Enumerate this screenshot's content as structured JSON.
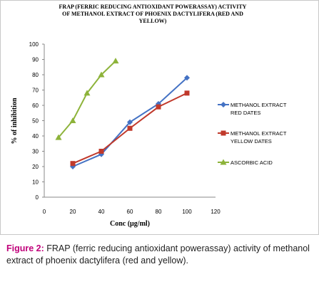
{
  "chart_data": {
    "type": "line",
    "title_lines": [
      "FRAP (FERRIC REDUCING ANTIOXIDANT POWERASSAY) ACTIVITY",
      "OF METHANOL EXTRACT OF PHOENIX DACTYLIFERA (RED AND",
      "YELLOW)"
    ],
    "xlabel": "Conc (µg/ml)",
    "ylabel": "% of inhibition",
    "xlim": [
      0,
      120
    ],
    "ylim": [
      0,
      100
    ],
    "xticks": [
      "0",
      "20",
      "40",
      "60",
      "80",
      "100",
      "120"
    ],
    "yticks": [
      "0",
      "10",
      "20",
      "30",
      "40",
      "50",
      "60",
      "70",
      "80",
      "90",
      "100"
    ],
    "legend_position": "right",
    "series": [
      {
        "name_lines": [
          "METHANOL EXTRACT",
          "RED DATES"
        ],
        "color": "#4472c4",
        "marker": "diamond",
        "x": [
          20,
          40,
          60,
          80,
          100
        ],
        "y": [
          20,
          28,
          49,
          61,
          78
        ]
      },
      {
        "name_lines": [
          "METHANOL EXTRACT",
          "YELLOW DATES"
        ],
        "color": "#c0392b",
        "marker": "square",
        "x": [
          20,
          40,
          60,
          80,
          100
        ],
        "y": [
          22,
          30,
          45,
          59,
          68
        ]
      },
      {
        "name_lines": [
          "ASCORBIC ACID"
        ],
        "color": "#8db33a",
        "marker": "triangle",
        "x": [
          10,
          20,
          30,
          40,
          50
        ],
        "y": [
          39,
          50,
          68,
          80,
          89
        ]
      }
    ]
  },
  "caption": {
    "label": "Figure 2:",
    "text": " FRAP (ferric reducing antioxidant powerassay) activity of methanol extract of phoenix dactylifera (red and yellow)."
  }
}
